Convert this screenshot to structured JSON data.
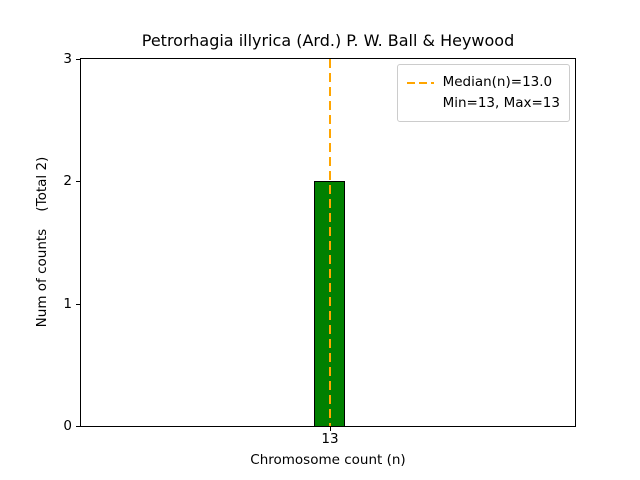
{
  "chart_data": {
    "type": "bar",
    "title": "Petrorhagia illyrica (Ard.) P. W. Ball & Heywood",
    "xlabel": "Chromosome count (n)",
    "ylabel": "Num of counts    (Total 2)",
    "total_counts": 2,
    "categories": [
      "13"
    ],
    "values": [
      2
    ],
    "ylim": [
      0,
      3
    ],
    "yticks": [
      0,
      1,
      2,
      3
    ],
    "grid": false,
    "bar_color": "#008000",
    "bar_edge_color": "#000000",
    "median_line": {
      "value": 13.0,
      "color": "#ffa500",
      "style": "dashed"
    },
    "legend": {
      "position": "upper right",
      "entries": [
        {
          "label": "Median(n)=13.0",
          "symbol": "dashed-line",
          "color": "#ffa500"
        },
        {
          "label": "Min=13, Max=13",
          "symbol": "none"
        }
      ]
    }
  }
}
